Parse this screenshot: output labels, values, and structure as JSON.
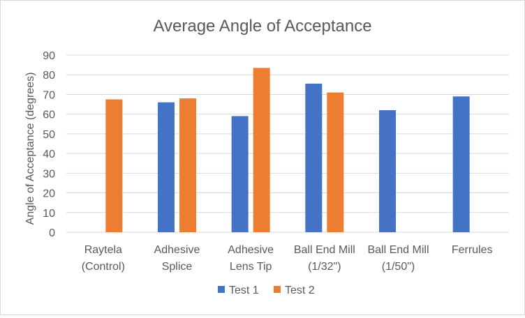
{
  "chart_data": {
    "type": "bar",
    "title": "Average Angle of Acceptance",
    "xlabel": "",
    "ylabel": "Angle of Acceptance (degrees)",
    "ylim": [
      0,
      90
    ],
    "ytick_step": 10,
    "yticks": [
      "0",
      "10",
      "20",
      "30",
      "40",
      "50",
      "60",
      "70",
      "80",
      "90"
    ],
    "grid": true,
    "legend_position": "bottom",
    "categories": [
      [
        "Raytela",
        "(Control)"
      ],
      [
        "Adhesive",
        "Splice"
      ],
      [
        "Adhesive",
        "Lens Tip"
      ],
      [
        "Ball End Mill",
        "(1/32\")"
      ],
      [
        "Ball End Mill",
        "(1/50\")"
      ],
      [
        "Ferrules"
      ]
    ],
    "series": [
      {
        "name": "Test 1",
        "color": "#4472c4",
        "values": [
          null,
          66,
          59,
          75.5,
          62,
          69
        ]
      },
      {
        "name": "Test 2",
        "color": "#ed7d31",
        "values": [
          67.5,
          68,
          83.5,
          71,
          null,
          null
        ]
      }
    ]
  }
}
